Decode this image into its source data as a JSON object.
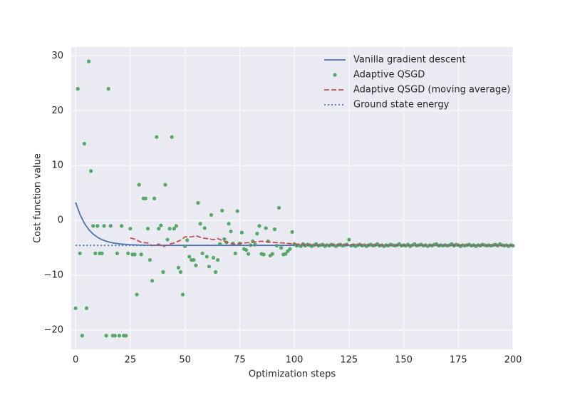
{
  "chart_data": {
    "type": "line",
    "xlabel": "Optimization steps",
    "ylabel": "Cost function value",
    "xlim": [
      -2,
      200
    ],
    "ylim": [
      -23.5,
      31.6
    ],
    "xticks": [
      0,
      25,
      50,
      75,
      100,
      125,
      150,
      175,
      200
    ],
    "yticks": [
      {
        "value": -20,
        "label": "−20"
      },
      {
        "value": -10,
        "label": "−10"
      },
      0,
      10,
      20,
      30
    ],
    "grid": true,
    "legend": "upper right",
    "background": "#eaeaf2",
    "series": [
      {
        "name": "Vanilla gradient descent",
        "color": "#4c72b0",
        "style": "solid",
        "x": [
          0,
          2,
          4,
          6,
          8,
          10,
          12,
          14,
          16,
          18,
          20,
          24,
          28,
          32,
          40,
          200
        ],
        "values": [
          3.3,
          1.07,
          -0.52,
          -1.66,
          -2.48,
          -3.07,
          -3.49,
          -3.79,
          -4.0,
          -4.16,
          -4.27,
          -4.41,
          -4.48,
          -4.51,
          -4.54,
          -4.55
        ]
      },
      {
        "name": "Adaptive QSGD",
        "color": "#55a868",
        "style": "points",
        "x": [
          0,
          1,
          2,
          3,
          4,
          5,
          6,
          7,
          8,
          9,
          10,
          11,
          12,
          13,
          14,
          15,
          16,
          17,
          18,
          19,
          20,
          21,
          22,
          23,
          24,
          25,
          26,
          27,
          28,
          29,
          30,
          31,
          32,
          33,
          34,
          35,
          36,
          37,
          38,
          39,
          40,
          41,
          42,
          43,
          44,
          45,
          46,
          47,
          48,
          49,
          50,
          51,
          52,
          53,
          54,
          55,
          56,
          57,
          58,
          59,
          60,
          61,
          62,
          63,
          64,
          65,
          66,
          67,
          68,
          69,
          70,
          71,
          72,
          73,
          74,
          75,
          76,
          77,
          78,
          79,
          80,
          81,
          82,
          83,
          84,
          85,
          86,
          87,
          88,
          89,
          90,
          91,
          92,
          93,
          94,
          95,
          96,
          97,
          98,
          99,
          100,
          101,
          102,
          103,
          104,
          105,
          106,
          107,
          108,
          109,
          110,
          111,
          112,
          113,
          114,
          115,
          116,
          117,
          118,
          119,
          120,
          121,
          122,
          123,
          124,
          125,
          126,
          127,
          128,
          129,
          130,
          131,
          132,
          133,
          134,
          135,
          136,
          137,
          138,
          139,
          140,
          141,
          142,
          143,
          144,
          145,
          146,
          147,
          148,
          149,
          150,
          151,
          152,
          153,
          154,
          155,
          156,
          157,
          158,
          159,
          160,
          161,
          162,
          163,
          164,
          165,
          166,
          167,
          168,
          169,
          170,
          171,
          172,
          173,
          174,
          175,
          176,
          177,
          178,
          179,
          180,
          181,
          182,
          183,
          184,
          185,
          186,
          187,
          188,
          189,
          190,
          191,
          192,
          193,
          194,
          195,
          196,
          197,
          198,
          199,
          200
        ],
        "values": [
          -16,
          24,
          -6,
          -21,
          14,
          -16,
          29,
          9,
          -1,
          -6,
          -1,
          -6,
          -6,
          -1,
          -21,
          24,
          -1,
          -21,
          -21,
          -6,
          -21,
          -1,
          -21,
          -21,
          -6,
          -1.5,
          -6.2,
          -6.2,
          -13.5,
          6.5,
          -6.2,
          4,
          4,
          -1.5,
          -7.2,
          -11,
          4,
          15.2,
          -1.5,
          -0.9,
          -9.4,
          6.5,
          -3.5,
          -1.5,
          15.2,
          -1.5,
          -1,
          -8.6,
          -9.4,
          -13.5,
          -4.7,
          -3.6,
          -6.6,
          -7.2,
          -7.2,
          -8.2,
          3.2,
          -0.6,
          -6,
          -1.4,
          -6.6,
          -8.4,
          1,
          -6.8,
          -9.4,
          -7.2,
          -4.3,
          1.8,
          -3.4,
          -4,
          -0.6,
          -2,
          -4.2,
          -6,
          1.7,
          -4.2,
          -2.2,
          -5.2,
          -5.4,
          -6.1,
          -4.5,
          -3.8,
          -4.4,
          -2.4,
          -1,
          -6.1,
          -6.2,
          -1.4,
          -3.8,
          -6.4,
          -6.1,
          -1.6,
          -4.6,
          2.3,
          -5,
          -6.2,
          -6.1,
          -5.6,
          -5.2,
          -2.1,
          -4.3,
          -4.6,
          -4.5,
          -4.7,
          -4.3,
          -4.6,
          -4.4,
          -4.5,
          -4.7,
          -4.5,
          -4.3,
          -4.6,
          -4.5,
          -4.4,
          -4.7,
          -4.5,
          -4.6,
          -4.4,
          -4.5,
          -4.7,
          -4.5,
          -4.4,
          -4.6,
          -4.5,
          -4.4,
          -3.5,
          -4.6,
          -4.5,
          -4.7,
          -4.5,
          -4.4,
          -4.6,
          -4.5,
          -4.7,
          -4.5,
          -4.4,
          -4.6,
          -4.5,
          -4.3,
          -4.6,
          -4.5,
          -4.7,
          -4.5,
          -4.6,
          -4.4,
          -4.5,
          -4.6,
          -4.5,
          -4.3,
          -4.6,
          -4.5,
          -4.6,
          -4.4,
          -4.7,
          -4.5,
          -4.3,
          -4.6,
          -4.5,
          -4.4,
          -4.6,
          -4.5,
          -4.7,
          -4.5,
          -4.6,
          -4.4,
          -4.3,
          -4.6,
          -4.5,
          -4.6,
          -4.5,
          -4.6,
          -4.5,
          -4.3,
          -4.6,
          -4.4,
          -4.5,
          -4.7,
          -4.5,
          -4.6,
          -4.5,
          -4.4,
          -4.6,
          -4.5,
          -4.7,
          -4.5,
          -4.6,
          -4.4,
          -4.5,
          -4.6,
          -4.5,
          -4.6,
          -4.5,
          -4.4,
          -4.6,
          -4.3,
          -4.5,
          -4.6,
          -4.5,
          -4.7,
          -4.5,
          -4.6
        ]
      },
      {
        "name": "Adaptive QSGD (moving average)",
        "color": "#c44e52",
        "style": "dashed",
        "x": [
          25,
          27,
          30,
          33,
          35,
          38,
          40,
          43,
          45,
          48,
          50,
          53,
          55,
          58,
          60,
          63,
          65,
          68,
          70,
          73,
          75,
          80,
          85,
          90,
          95,
          100,
          110,
          125,
          150,
          175,
          200
        ],
        "values": [
          -3.2,
          -3.4,
          -4.0,
          -4.1,
          -4.6,
          -4.3,
          -4.8,
          -4.3,
          -4.1,
          -3.6,
          -3.0,
          -3.0,
          -2.8,
          -3.2,
          -3.3,
          -3.5,
          -3.3,
          -3.8,
          -4.1,
          -4.4,
          -4.2,
          -4.0,
          -3.8,
          -4.0,
          -4.1,
          -4.3,
          -4.5,
          -4.4,
          -4.55,
          -4.5,
          -4.55
        ]
      },
      {
        "name": "Ground state energy",
        "color": "#4c72b0",
        "style": "dotted",
        "x": [
          0,
          200
        ],
        "values": [
          -4.55,
          -4.55
        ]
      }
    ]
  }
}
